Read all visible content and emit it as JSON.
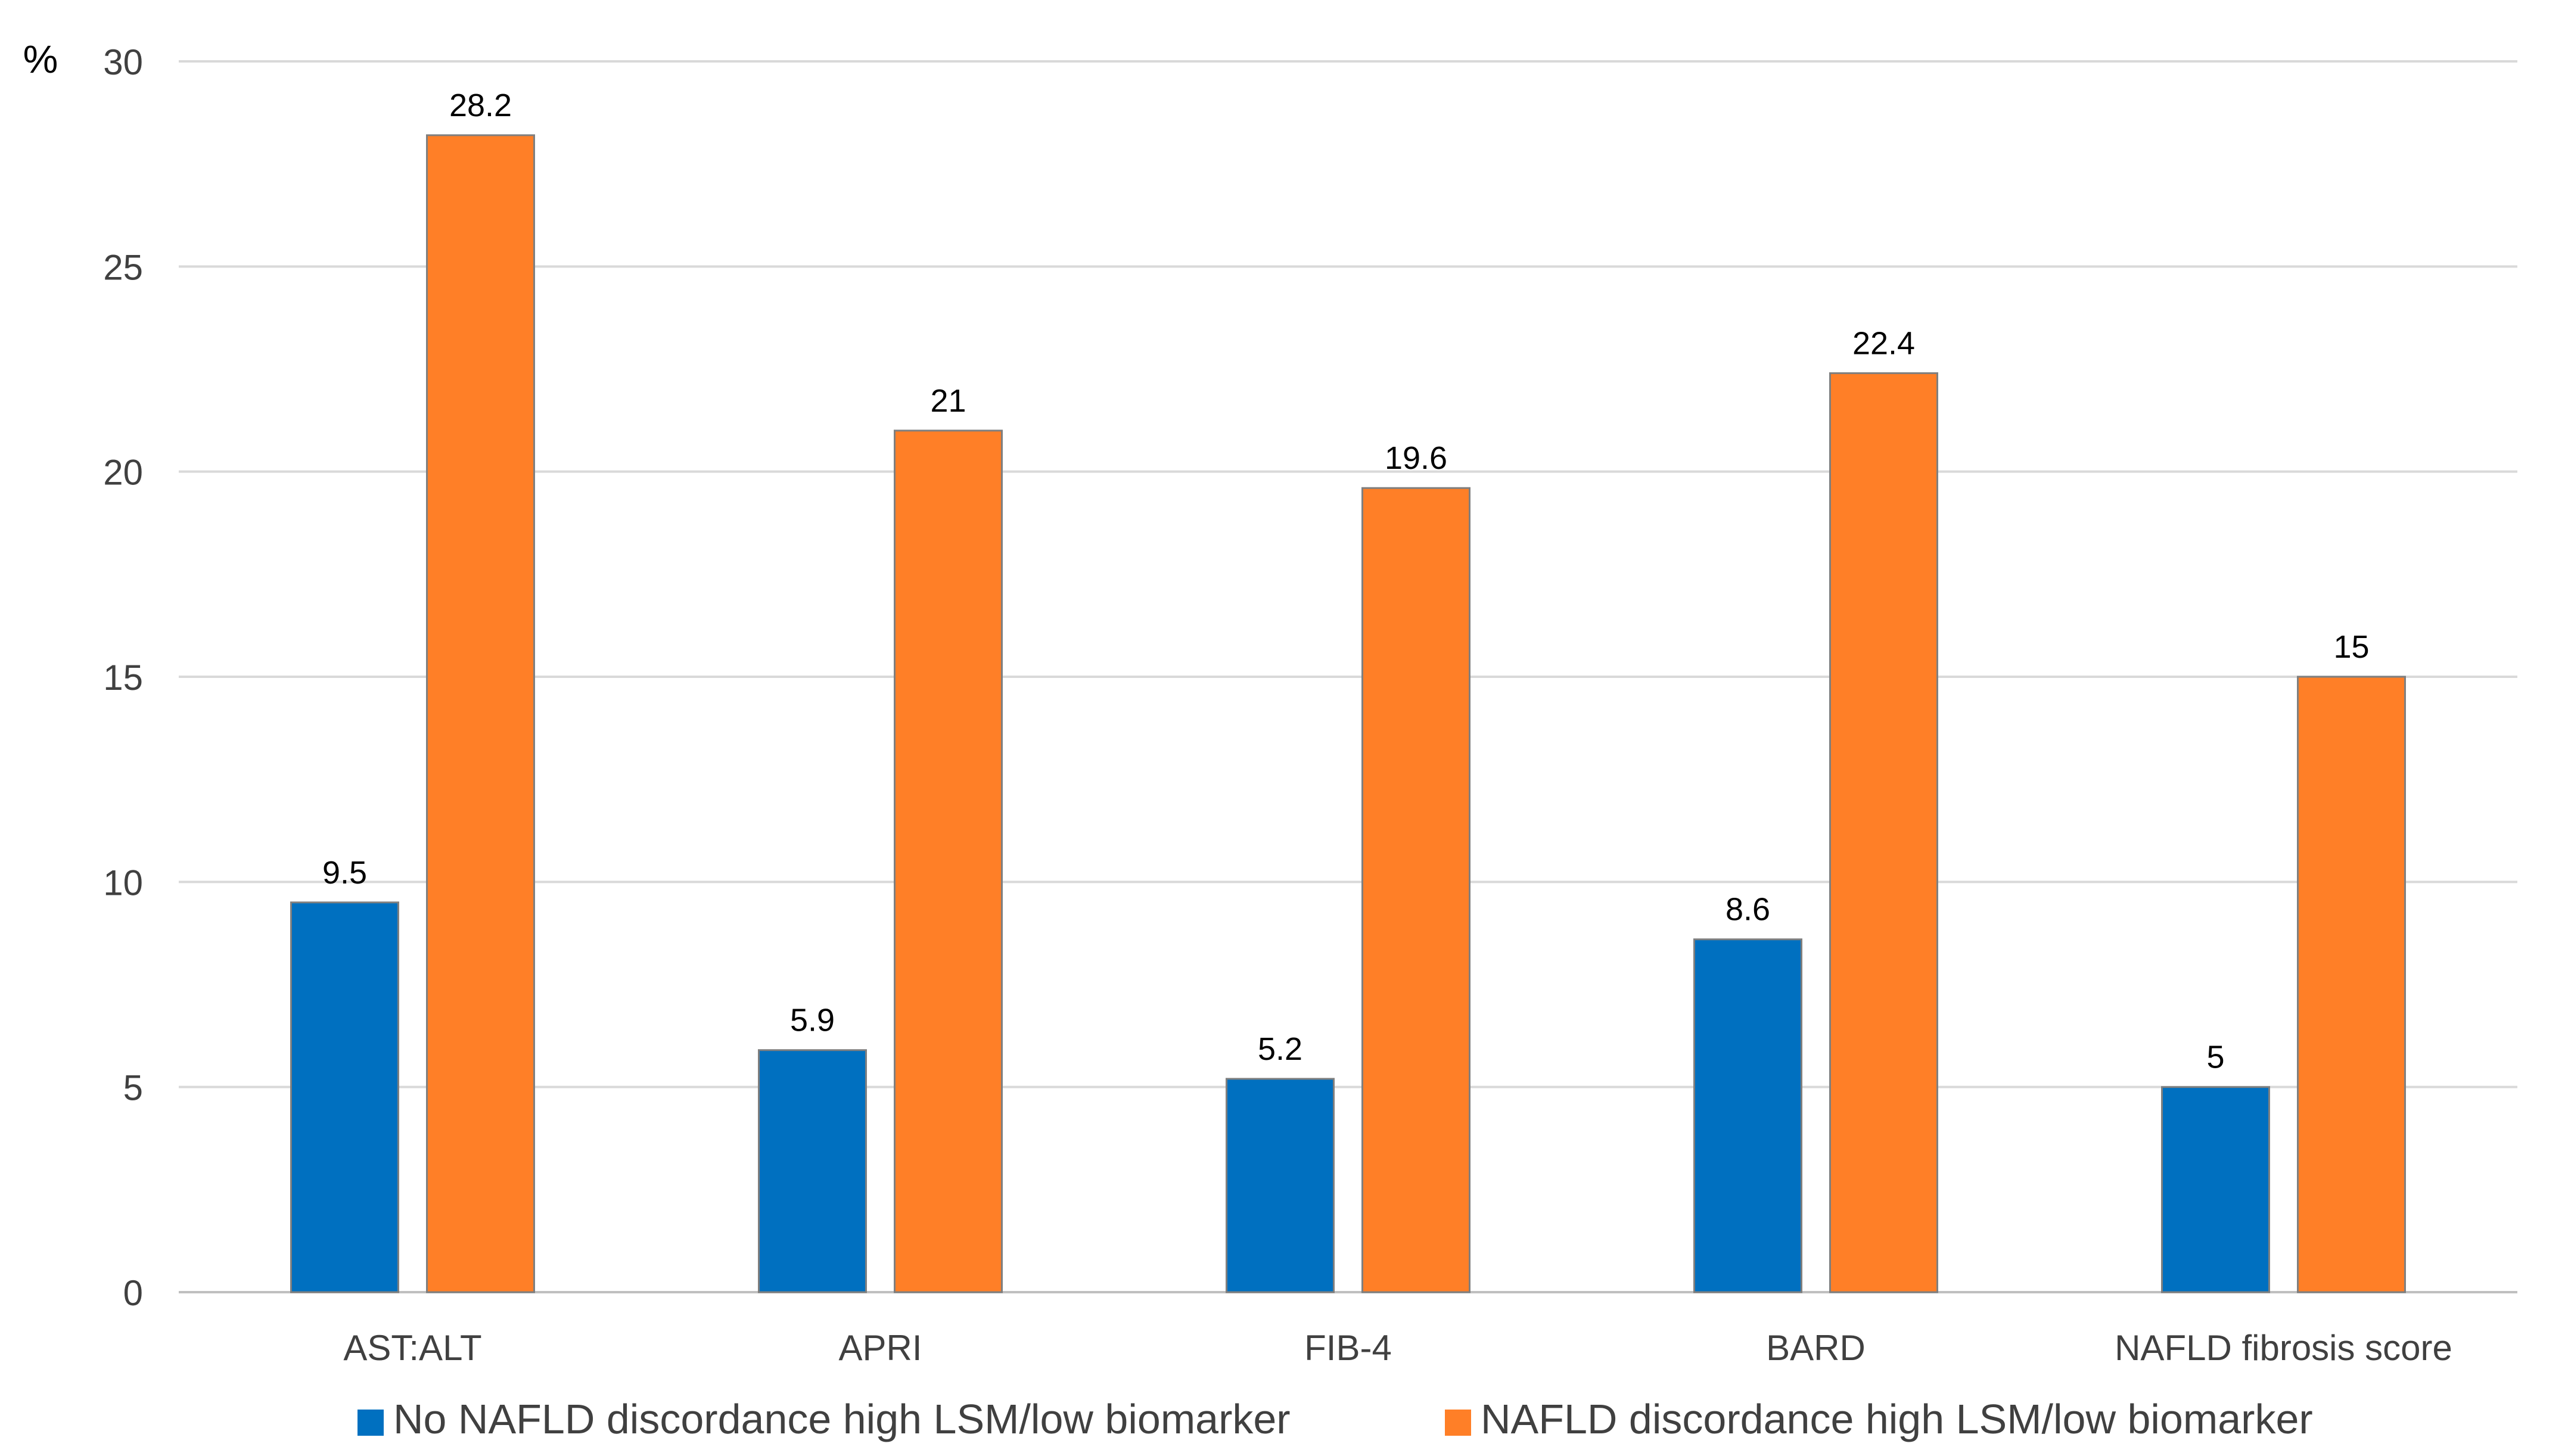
{
  "chart_data": {
    "type": "bar",
    "title": "",
    "xlabel": "",
    "ylabel": "%",
    "ylim": [
      0,
      30
    ],
    "yticks": [
      0,
      5,
      10,
      15,
      20,
      25,
      30
    ],
    "grid": true,
    "legend_position": "bottom",
    "categories": [
      "AST:ALT",
      "APRI",
      "FIB-4",
      "BARD",
      "NAFLD fibrosis score"
    ],
    "series": [
      {
        "name": "No NAFLD discordance high LSM/low biomarker",
        "color": "#0070C0",
        "values": [
          9.5,
          5.9,
          5.2,
          8.6,
          5
        ],
        "labels": [
          "9.5",
          "5.9",
          "5.2",
          "8.6",
          "5"
        ]
      },
      {
        "name": "NAFLD discordance high LSM/low biomarker",
        "color": "#FF7F27",
        "values": [
          28.2,
          21,
          19.6,
          22.4,
          15
        ],
        "labels": [
          "28.2",
          "21",
          "19.6",
          "22.4",
          "15"
        ]
      }
    ]
  }
}
